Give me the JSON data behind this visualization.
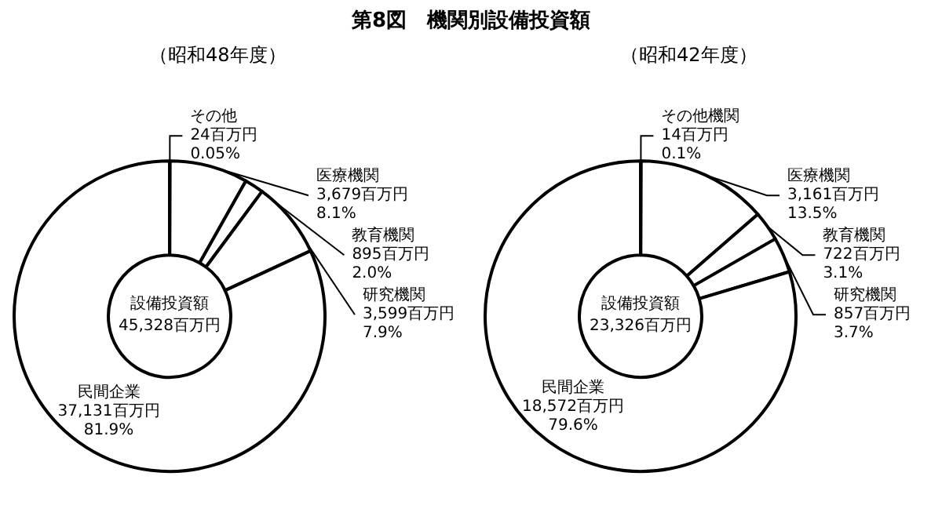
{
  "chart_data": [
    {
      "type": "donut",
      "title": "第8図　機関別設備投資額",
      "subtitle": "（昭和48年度）",
      "categories": [
        "その他",
        "医療機関",
        "教育機関",
        "研究機関",
        "民間企業"
      ],
      "values": [
        24,
        3679,
        895,
        3599,
        37131
      ],
      "value_labels": [
        "24百万円\n0.05%",
        "3,679百万円\n8.1%",
        "895百万円\n2.0%",
        "3,599百万円\n7.9%",
        "37,131百万円\n81.9%"
      ],
      "colors": [
        "#ffffff",
        "#ffffff",
        "#ffffff",
        "#ffffff",
        "#ffffff"
      ],
      "annotations": [
        "設備投資額\n45,328百万円"
      ]
    },
    {
      "type": "donut",
      "subtitle": "（昭和42年度）",
      "categories": [
        "その他機関",
        "医療機関",
        "教育機関",
        "研究機関",
        "民間企業"
      ],
      "values": [
        14,
        3161,
        722,
        857,
        18572
      ],
      "value_labels": [
        "14百万円\n0.1%",
        "3,161百万円\n13.5%",
        "722百万円\n3.1%",
        "857百万円\n3.7%",
        "18,572百万円\n79.6%"
      ],
      "colors": [
        "#ffffff",
        "#ffffff",
        "#ffffff",
        "#ffffff",
        "#ffffff"
      ],
      "annotations": [
        "設備投資額\n23,326百万円"
      ]
    }
  ]
}
